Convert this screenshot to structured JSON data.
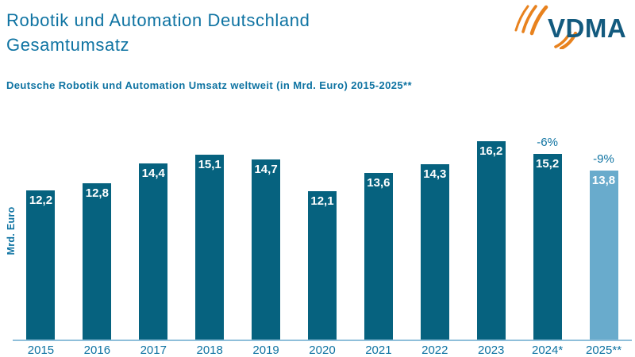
{
  "header": {
    "title_line1": "Robotik und Automation Deutschland",
    "title_line2": "Gesamtumsatz",
    "logo_text": "VDMA"
  },
  "subtitle": "Deutsche Robotik und Automation Umsatz weltweit (in Mrd. Euro) 2015-2025**",
  "colors": {
    "text_teal": "#0E73A2",
    "bar_default": "#06627F",
    "bar_forecast": "#69ABCC",
    "axis_line": "#8FBFDA",
    "logo_orange": "#E8821E",
    "logo_blue": "#135A7E",
    "bar_value_text": "#FFFFFF"
  },
  "chart_data": {
    "type": "bar",
    "title": "Deutsche Robotik und Automation Umsatz weltweit (in Mrd. Euro) 2015-2025**",
    "xlabel": "",
    "ylabel": "Mrd. Euro",
    "categories": [
      "2015",
      "2016",
      "2017",
      "2018",
      "2019",
      "2020",
      "2021",
      "2022",
      "2023",
      "2024*",
      "2025**"
    ],
    "values": [
      12.2,
      12.8,
      14.4,
      15.1,
      14.7,
      12.1,
      13.6,
      14.3,
      16.2,
      15.2,
      13.8
    ],
    "value_labels": [
      "12,2",
      "12,8",
      "14,4",
      "15,1",
      "14,7",
      "12,1",
      "13,6",
      "14,3",
      "16,2",
      "15,2",
      "13,8"
    ],
    "annotations": [
      {
        "index": 9,
        "label": "-6%"
      },
      {
        "index": 10,
        "label": "-9%"
      }
    ],
    "forecast_index": 10,
    "ylim": [
      0,
      17.5
    ],
    "grid": false,
    "legend": null
  }
}
